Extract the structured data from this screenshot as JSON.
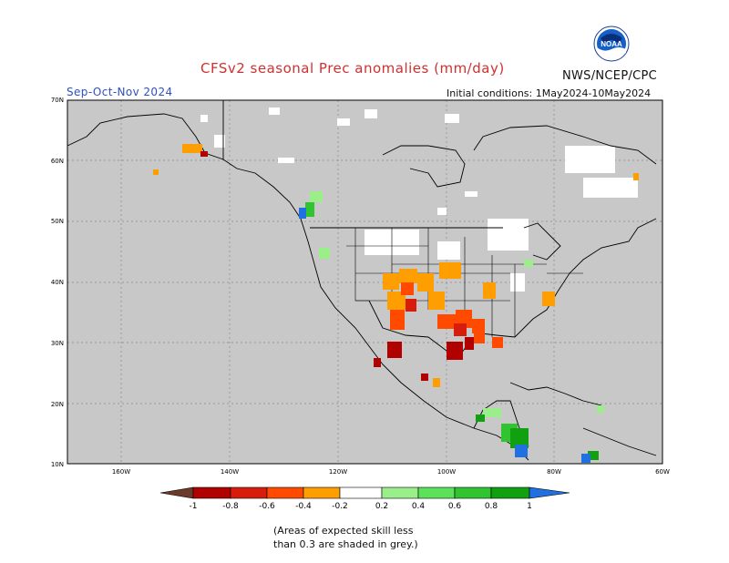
{
  "header": {
    "title": "CFSv2 seasonal Prec anomalies (mm/day)",
    "agency": "NWS/NCEP/CPC",
    "logo_text": "NOAA",
    "season": "Sep-Oct-Nov 2024",
    "initial_conditions": "Initial conditions: 1May2024-10May2024"
  },
  "map": {
    "lat_labels": [
      "70N",
      "60N",
      "50N",
      "40N",
      "30N",
      "20N",
      "10N"
    ],
    "lon_labels": [
      "160W",
      "140W",
      "120W",
      "100W",
      "80W",
      "60W"
    ],
    "lon_range": [
      -170,
      -60
    ],
    "lat_range": [
      10,
      70
    ],
    "background_color": "#c8c8c8"
  },
  "colorbar": {
    "tick_labels": [
      "-1",
      "-0.8",
      "-0.6",
      "-0.4",
      "-0.2",
      "0.2",
      "0.4",
      "0.6",
      "0.8",
      "1"
    ],
    "colors": [
      "#6b3a2a",
      "#b00000",
      "#d81c0c",
      "#ff4a00",
      "#ff9e00",
      "#ffffff",
      "#9aef8a",
      "#5ce25a",
      "#30c430",
      "#10a010",
      "#009000",
      "#2070e0"
    ]
  },
  "footnote": {
    "line1": "(Areas of expected skill less",
    "line2": "than 0.3 are shaded in grey.)"
  }
}
